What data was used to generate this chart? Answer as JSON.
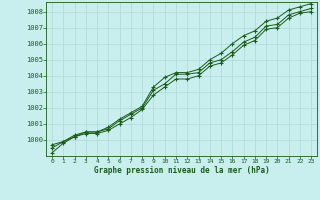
{
  "title": "Graphe pression niveau de la mer (hPa)",
  "bg_color": "#c8eeee",
  "grid_color": "#b0d8d8",
  "line_color": "#1a5c1a",
  "marker_color": "#1a5c1a",
  "xlim": [
    -0.5,
    23.5
  ],
  "ylim": [
    999.0,
    1008.6
  ],
  "yticks": [
    1000,
    1001,
    1002,
    1003,
    1004,
    1005,
    1006,
    1007,
    1008
  ],
  "xticks": [
    0,
    1,
    2,
    3,
    4,
    5,
    6,
    7,
    8,
    9,
    10,
    11,
    12,
    13,
    14,
    15,
    16,
    17,
    18,
    19,
    20,
    21,
    22,
    23
  ],
  "series1": [
    999.7,
    999.9,
    1000.3,
    1000.5,
    1000.5,
    1000.7,
    1001.2,
    1001.6,
    1002.0,
    1003.1,
    1003.5,
    1004.1,
    1004.1,
    1004.2,
    1004.8,
    1005.0,
    1005.5,
    1006.1,
    1006.4,
    1007.1,
    1007.2,
    1007.8,
    1008.0,
    1008.2
  ],
  "series2": [
    999.2,
    999.8,
    1000.2,
    1000.4,
    1000.4,
    1000.6,
    1001.0,
    1001.4,
    1001.9,
    1002.8,
    1003.3,
    1003.8,
    1003.8,
    1004.0,
    1004.6,
    1004.8,
    1005.3,
    1005.9,
    1006.2,
    1006.9,
    1007.0,
    1007.6,
    1007.9,
    1008.0
  ],
  "series3": [
    999.5,
    999.9,
    1000.2,
    1000.5,
    1000.5,
    1000.8,
    1001.3,
    1001.7,
    1002.1,
    1003.3,
    1003.9,
    1004.2,
    1004.2,
    1004.4,
    1005.0,
    1005.4,
    1006.0,
    1006.5,
    1006.8,
    1007.4,
    1007.6,
    1008.1,
    1008.3,
    1008.5
  ]
}
